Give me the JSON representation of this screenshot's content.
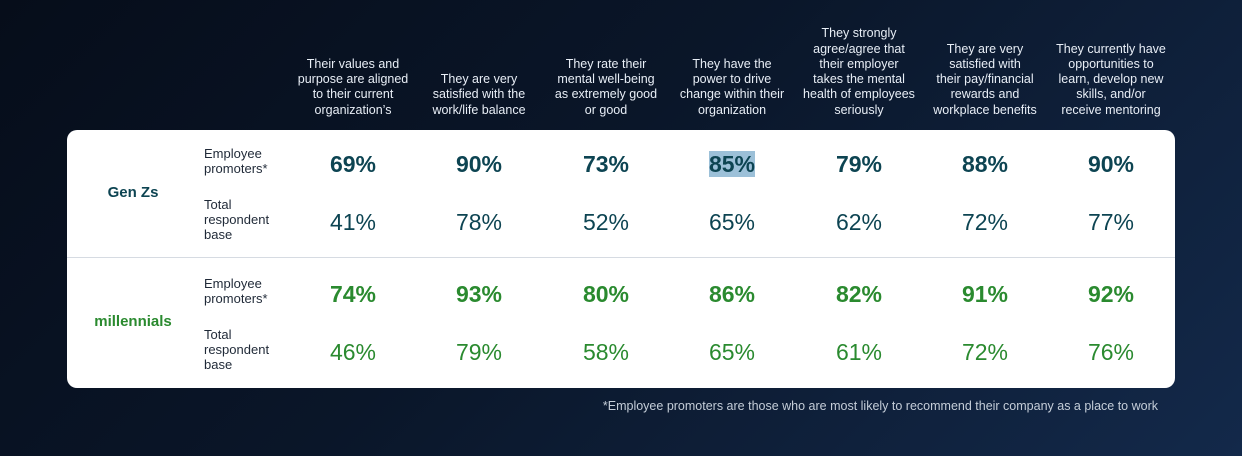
{
  "colors": {
    "gen_z": "#0d4452",
    "millennials": "#2a8a2f"
  },
  "chart_data": {
    "type": "table",
    "columns": [
      "Their values and purpose are aligned to their current organization’s",
      "They are very satisfied with the work/life balance",
      "They rate their mental well-being as extremely good or good",
      "They have the power to drive change within their organization",
      "They strongly agree/agree that their employer takes the mental health of employees seriously",
      "They are very satisfied with their pay/financial rewards and workplace benefits",
      "They currently have opportunities to learn, develop new skills, and/or receive mentoring"
    ],
    "column_lines": [
      [
        "Their values and",
        "purpose are aligned",
        "to their current",
        "organization’s"
      ],
      [
        "They are very",
        "satisfied with the",
        "work/life balance"
      ],
      [
        "They rate their",
        "mental well-being",
        "as extremely good",
        "or good"
      ],
      [
        "They have the",
        "power to drive",
        "change within their",
        "organization"
      ],
      [
        "They strongly",
        "agree/agree that",
        "their employer",
        "takes the mental",
        "health of employees",
        "seriously"
      ],
      [
        "They are very",
        "satisfied with",
        "their pay/financial",
        "rewards and",
        "workplace benefits"
      ],
      [
        "They currently have",
        "opportunities to",
        "learn, develop new",
        "skills, and/or",
        "receive mentoring"
      ]
    ],
    "groups": [
      {
        "name": "Gen Zs",
        "color_key": "gen_z",
        "rows": [
          {
            "label_lines": [
              "Employee",
              "promoters*"
            ],
            "bold": true,
            "values": [
              "69%",
              "90%",
              "73%",
              "85%",
              "79%",
              "88%",
              "90%"
            ]
          },
          {
            "label_lines": [
              "Total",
              "respondent",
              "base"
            ],
            "bold": false,
            "values": [
              "41%",
              "78%",
              "52%",
              "65%",
              "62%",
              "72%",
              "77%"
            ]
          }
        ]
      },
      {
        "name": "millennials",
        "color_key": "millennials",
        "rows": [
          {
            "label_lines": [
              "Employee",
              "promoters*"
            ],
            "bold": true,
            "values": [
              "74%",
              "93%",
              "80%",
              "86%",
              "82%",
              "91%",
              "92%"
            ]
          },
          {
            "label_lines": [
              "Total",
              "respondent",
              "base"
            ],
            "bold": false,
            "values": [
              "46%",
              "79%",
              "58%",
              "65%",
              "61%",
              "72%",
              "76%"
            ]
          }
        ]
      }
    ],
    "footnote": "*Employee promoters are those who are most likely to recommend their company as a place to work"
  }
}
